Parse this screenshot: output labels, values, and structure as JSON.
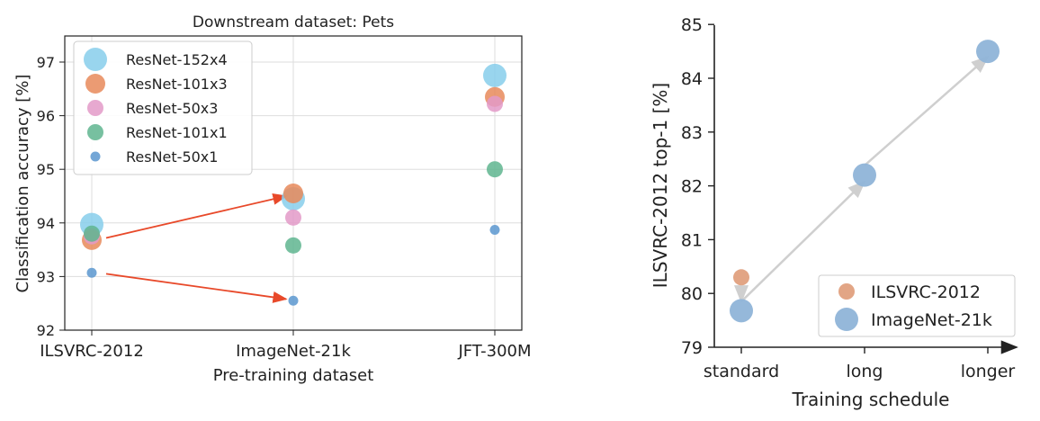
{
  "chart_data": [
    {
      "type": "scatter",
      "title": "Downstream dataset: Pets",
      "xlabel": "Pre-training dataset",
      "ylabel": "Classification accuracy [%]",
      "categories": [
        "ILSVRC-2012",
        "ImageNet-21k",
        "JFT-300M"
      ],
      "ylim": [
        92,
        97.5
      ],
      "yticks": [
        "92",
        "93",
        "94",
        "95",
        "96",
        "97"
      ],
      "grid": true,
      "legend_position": "top-left",
      "series": [
        {
          "name": "ResNet-152x4",
          "color": "#87CEEB",
          "values": [
            93.97,
            94.45,
            96.75
          ]
        },
        {
          "name": "ResNet-101x3",
          "color": "#E8895A",
          "values": [
            93.68,
            94.55,
            96.35
          ]
        },
        {
          "name": "ResNet-50x3",
          "color": "#E39AC8",
          "values": [
            93.75,
            94.1,
            96.22
          ]
        },
        {
          "name": "ResNet-101x1",
          "color": "#5FB58F",
          "values": [
            93.8,
            93.58,
            95.0
          ]
        },
        {
          "name": "ResNet-50x1",
          "color": "#5B97CF",
          "values": [
            93.07,
            92.55,
            93.87
          ]
        }
      ],
      "arrows": [
        {
          "from": [
            "ILSVRC-2012",
            93.72
          ],
          "to": [
            "ImageNet-21k",
            94.5
          ],
          "color": "#E8492A"
        },
        {
          "from": [
            "ILSVRC-2012",
            93.05
          ],
          "to": [
            "ImageNet-21k",
            92.58
          ],
          "color": "#E8492A"
        }
      ]
    },
    {
      "type": "scatter",
      "title": "",
      "xlabel": "Training schedule",
      "ylabel": "ILSVRC-2012 top-1 [%]",
      "categories": [
        "standard",
        "long",
        "longer"
      ],
      "ylim": [
        79,
        85
      ],
      "yticks": [
        "79",
        "80",
        "81",
        "82",
        "83",
        "84",
        "85"
      ],
      "grid": false,
      "legend_position": "bottom-right",
      "series": [
        {
          "name": "ILSVRC-2012",
          "color": "#E0A07E",
          "values": [
            80.3,
            null,
            null
          ]
        },
        {
          "name": "ImageNet-21k",
          "color": "#8FB4D8",
          "values": [
            79.68,
            82.2,
            84.5
          ]
        }
      ],
      "arrows": [
        {
          "from": [
            "standard",
            80.1
          ],
          "to": [
            "standard",
            79.85
          ],
          "color": "#cfcfcf"
        },
        {
          "from": [
            "standard",
            79.85
          ],
          "to": [
            "long",
            82.08
          ],
          "color": "#cfcfcf"
        },
        {
          "from": [
            "long",
            82.38
          ],
          "to": [
            "longer",
            84.4
          ],
          "color": "#cfcfcf"
        }
      ]
    }
  ]
}
